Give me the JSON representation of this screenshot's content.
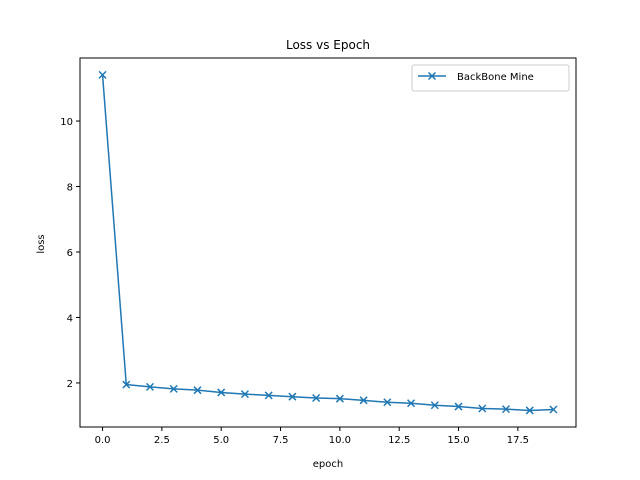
{
  "chart_data": {
    "type": "line",
    "title": "Loss vs Epoch",
    "xlabel": "epoch",
    "ylabel": "loss",
    "xlim": [
      -0.95,
      19.95
    ],
    "ylim": [
      0.655,
      11.925
    ],
    "xticks": [
      0,
      2.5,
      5,
      7.5,
      10,
      12.5,
      15,
      17.5
    ],
    "xtick_labels": [
      "0.0",
      "2.5",
      "5.0",
      "7.5",
      "10.0",
      "12.5",
      "15.0",
      "17.5"
    ],
    "yticks": [
      2,
      4,
      6,
      8,
      10
    ],
    "ytick_labels": [
      "2",
      "4",
      "6",
      "8",
      "10"
    ],
    "grid": false,
    "legend_position": "top-right",
    "series": [
      {
        "name": "BackBone Mine",
        "color": "#1f77b4",
        "marker": "x",
        "x": [
          0,
          1,
          2,
          3,
          4,
          5,
          6,
          7,
          8,
          9,
          10,
          11,
          12,
          13,
          14,
          15,
          16,
          17,
          18,
          19
        ],
        "y": [
          11.41,
          1.95,
          1.88,
          1.82,
          1.78,
          1.71,
          1.66,
          1.62,
          1.58,
          1.54,
          1.52,
          1.47,
          1.41,
          1.38,
          1.32,
          1.28,
          1.22,
          1.2,
          1.16,
          1.19
        ]
      }
    ]
  }
}
